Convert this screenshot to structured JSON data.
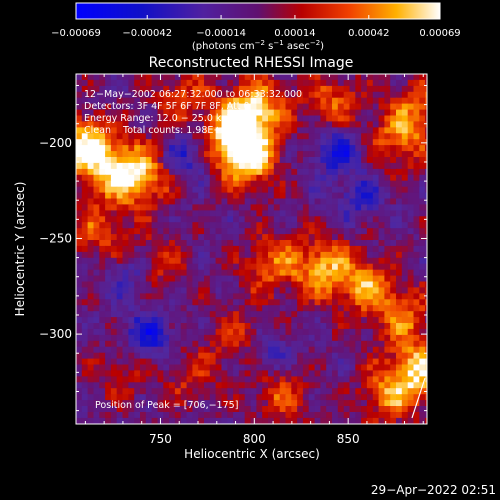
{
  "chart_data": {
    "type": "heatmap",
    "title": "Reconstructed RHESSI Image",
    "xlabel": "Heliocentric X (arcsec)",
    "ylabel": "Heliocentric Y (arcsec)",
    "xlim": [
      705,
      892
    ],
    "ylim": [
      -347,
      -164
    ],
    "x_ticks": [
      750,
      800,
      850
    ],
    "y_ticks": [
      -200,
      -250,
      -300
    ],
    "x_tick_labels": [
      "750",
      "800",
      "850"
    ],
    "y_tick_labels": [
      "−200",
      "−250",
      "−300"
    ],
    "colorbar": {
      "range": [
        -0.00069,
        0.00069
      ],
      "ticks": [
        -0.00069,
        -0.00042,
        -0.00014,
        0.00014,
        0.00042,
        0.00069
      ],
      "tick_labels": [
        "−0.00069",
        "−0.00042",
        "−0.00014",
        "0.00014",
        "0.00042",
        "0.00069"
      ],
      "units_text": "(photons cm",
      "units_exp1": "−2",
      "units_mid": " s",
      "units_exp2": "−1",
      "units_mid2": " asec",
      "units_exp3": "−2",
      "units_end": ")"
    },
    "annotations": [
      "12−May−2002 06:27:32.000 to 06:33:32.000",
      "Detectors: 3F 4F 5F 6F 7F 8F, Att 0",
      "Energy Range: 12.0 − 25.0 keV",
      "Clean    Total counts: 1.98E+04"
    ],
    "peak_label": "Position of Peak = [706,−175]",
    "peak": [
      706,
      -175
    ],
    "bright_sources": [
      {
        "x": 708,
        "y": -200,
        "value": 0.00069
      },
      {
        "x": 725,
        "y": -213,
        "value": 0.0005
      },
      {
        "x": 740,
        "y": -216,
        "value": 0.00046
      },
      {
        "x": 716,
        "y": -245,
        "value": 0.00035
      },
      {
        "x": 760,
        "y": -175,
        "value": 0.00032
      },
      {
        "x": 787,
        "y": -195,
        "value": 0.0006
      },
      {
        "x": 795,
        "y": -207,
        "value": 0.00063
      },
      {
        "x": 800,
        "y": -180,
        "value": 0.00058
      },
      {
        "x": 840,
        "y": -178,
        "value": 0.00038
      },
      {
        "x": 875,
        "y": -198,
        "value": 0.0004
      },
      {
        "x": 885,
        "y": -180,
        "value": 0.00036
      },
      {
        "x": 808,
        "y": -262,
        "value": 0.0004
      },
      {
        "x": 835,
        "y": -264,
        "value": 0.00052
      },
      {
        "x": 858,
        "y": -273,
        "value": 0.00046
      },
      {
        "x": 878,
        "y": -290,
        "value": 0.0004
      },
      {
        "x": 870,
        "y": -330,
        "value": 0.00042
      },
      {
        "x": 887,
        "y": -318,
        "value": 0.00058
      },
      {
        "x": 792,
        "y": -300,
        "value": 0.0003
      },
      {
        "x": 812,
        "y": -330,
        "value": 0.00034
      },
      {
        "x": 765,
        "y": -320,
        "value": 0.00026
      },
      {
        "x": 728,
        "y": -318,
        "value": 0.00022
      },
      {
        "x": 746,
        "y": -262,
        "value": 0.00028
      }
    ],
    "dark_sources": [
      {
        "x": 843,
        "y": -202,
        "value": -0.00045
      },
      {
        "x": 742,
        "y": -300,
        "value": -0.00044
      },
      {
        "x": 762,
        "y": -206,
        "value": -0.00036
      },
      {
        "x": 732,
        "y": -268,
        "value": -0.0003
      },
      {
        "x": 806,
        "y": -308,
        "value": -0.0003
      },
      {
        "x": 855,
        "y": -228,
        "value": -0.00028
      }
    ]
  },
  "footer": {
    "timestamp": "29−Apr−2022 02:51"
  }
}
